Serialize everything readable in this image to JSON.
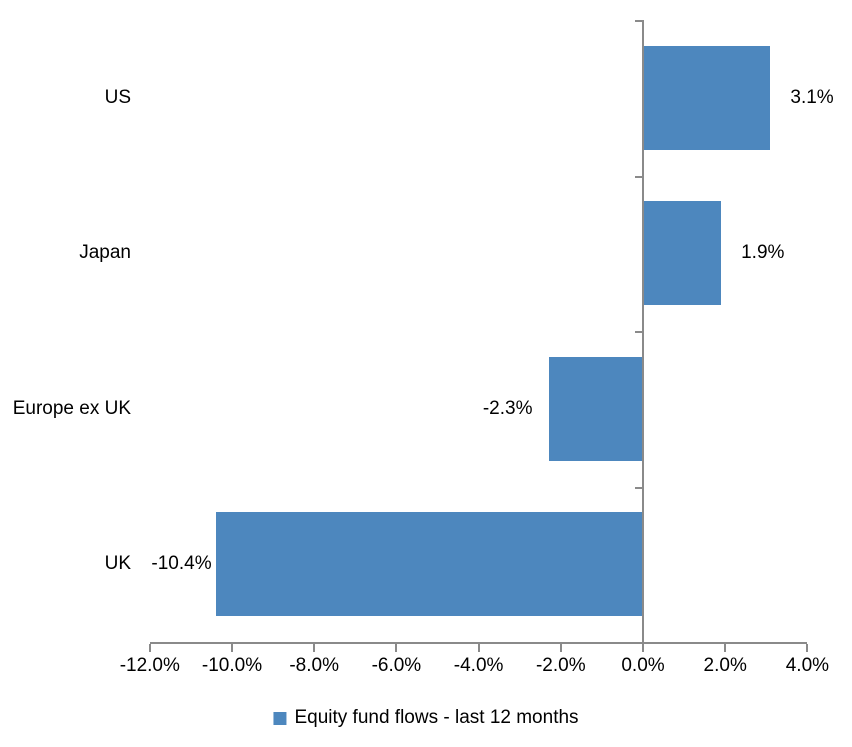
{
  "chart_data": {
    "type": "bar",
    "orientation": "horizontal",
    "title": "",
    "categories": [
      "US",
      "Japan",
      "Europe ex UK",
      "UK"
    ],
    "values": [
      3.1,
      1.9,
      -2.3,
      -10.4
    ],
    "value_labels": [
      "3.1%",
      "1.9%",
      "-2.3%",
      "-10.4%"
    ],
    "series_name": "Equity fund flows - last 12 months",
    "xlim": [
      -12,
      4
    ],
    "x_tick_values": [
      -12,
      -10,
      -8,
      -6,
      -4,
      -2,
      0,
      2,
      4
    ],
    "x_tick_labels": [
      "-12.0%",
      "-10.0%",
      "-8.0%",
      "-6.0%",
      "-4.0%",
      "-2.0%",
      "0.0%",
      "2.0%",
      "4.0%"
    ],
    "grid": false,
    "legend_position": "bottom",
    "bar_color": "#4D87BE",
    "axis_color": "#8A8A8A",
    "text_color": "#000000"
  },
  "legend": {
    "label": "Equity fund flows - last 12 months"
  }
}
